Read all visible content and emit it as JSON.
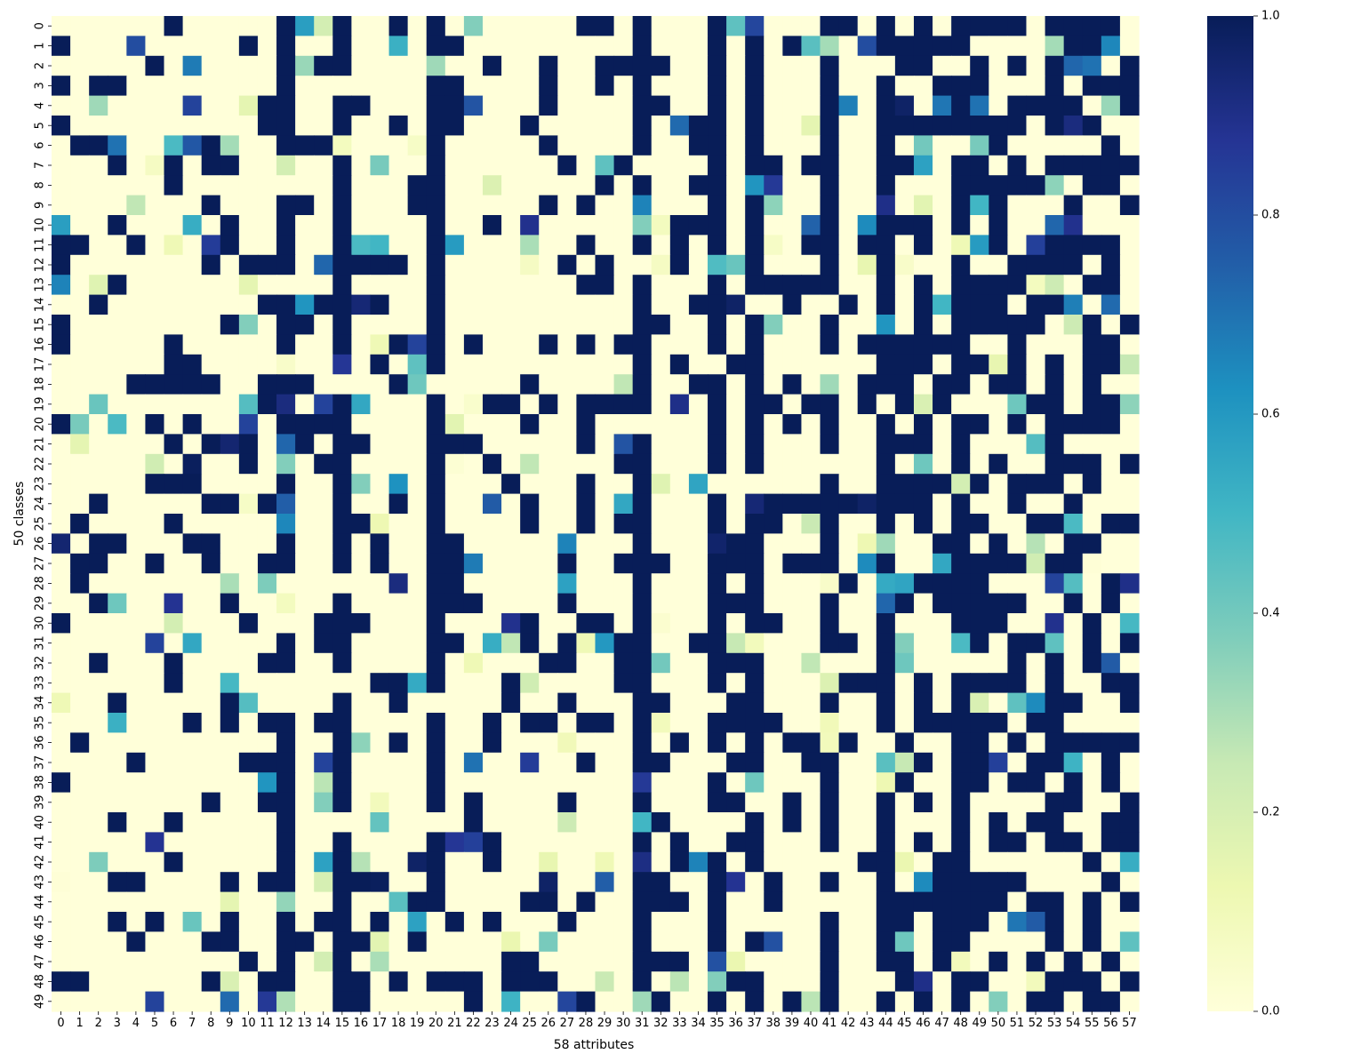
{
  "chart_data": {
    "type": "heatmap",
    "title": "",
    "xlabel": "58 attributes",
    "ylabel": "50 classes",
    "rows": 50,
    "cols": 58,
    "x_tick_labels": [
      "0",
      "1",
      "2",
      "3",
      "4",
      "5",
      "6",
      "7",
      "8",
      "9",
      "10",
      "11",
      "12",
      "13",
      "14",
      "15",
      "16",
      "17",
      "18",
      "19",
      "20",
      "21",
      "22",
      "23",
      "24",
      "25",
      "26",
      "27",
      "28",
      "29",
      "30",
      "31",
      "32",
      "33",
      "34",
      "35",
      "36",
      "37",
      "38",
      "39",
      "40",
      "41",
      "42",
      "43",
      "44",
      "45",
      "46",
      "47",
      "48",
      "49",
      "50",
      "51",
      "52",
      "53",
      "54",
      "55",
      "56",
      "57"
    ],
    "y_tick_labels": [
      "0",
      "1",
      "2",
      "3",
      "4",
      "5",
      "6",
      "7",
      "8",
      "9",
      "10",
      "11",
      "12",
      "13",
      "14",
      "15",
      "16",
      "17",
      "18",
      "19",
      "20",
      "21",
      "22",
      "23",
      "24",
      "25",
      "26",
      "27",
      "28",
      "29",
      "30",
      "31",
      "32",
      "33",
      "34",
      "35",
      "36",
      "37",
      "38",
      "39",
      "40",
      "41",
      "42",
      "43",
      "44",
      "45",
      "46",
      "47",
      "48",
      "49"
    ],
    "value_range": [
      0,
      1
    ],
    "colormap": "YlGnBu",
    "colorbar": {
      "ticks": [
        0.0,
        0.2,
        0.4,
        0.6,
        0.8,
        1.0
      ],
      "tick_labels": [
        "0.0",
        "0.2",
        "0.4",
        "0.6",
        "0.8",
        "1.0"
      ]
    },
    "colors": [
      "#ffffd9",
      "#edf8b1",
      "#c7e9b4",
      "#7fcdbb",
      "#41b6c4",
      "#1d91c0",
      "#225ea8",
      "#253494",
      "#081d58"
    ],
    "dense_columns": [
      12,
      15,
      20,
      31,
      35,
      37,
      41,
      44,
      48,
      53
    ],
    "values": []
  }
}
